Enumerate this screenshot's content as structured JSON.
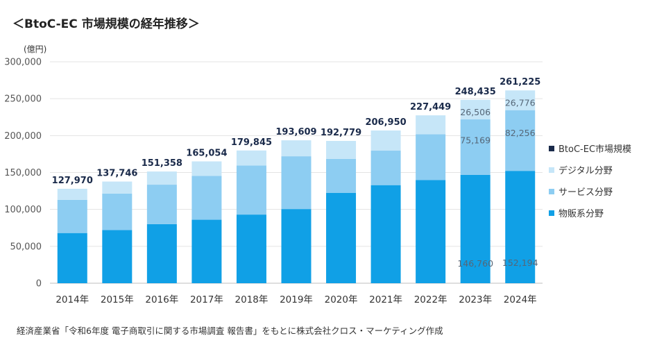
{
  "title": "＜BtoC-EC 市場規模の経年推移＞",
  "source": "経済産業省「令和6年度 電子商取引に関する市場調査 報告書」をもとに株式会社クロス・マーケティング作成",
  "chart_data": {
    "type": "bar",
    "stacked": true,
    "unit": "(億円)",
    "ylim": [
      0,
      300000
    ],
    "yticks": [
      "0",
      "50,000",
      "100,000",
      "150,000",
      "200,000",
      "250,000",
      "300,000"
    ],
    "categories": [
      "2014年",
      "2015年",
      "2016年",
      "2017年",
      "2018年",
      "2019年",
      "2020年",
      "2021年",
      "2022年",
      "2023年",
      "2024年"
    ],
    "series": [
      {
        "name": "物販系分野",
        "color": "#10a0e6",
        "values": [
          68000,
          72000,
          80000,
          86000,
          93000,
          100500,
          122500,
          132900,
          139900,
          146760,
          152194
        ]
      },
      {
        "name": "サービス分野",
        "color": "#8dcdf2",
        "values": [
          45000,
          49500,
          53500,
          59500,
          66500,
          71500,
          46000,
          46700,
          62000,
          75169,
          82256
        ]
      },
      {
        "name": "デジタル分野",
        "color": "#c6e6f8",
        "values": [
          14970,
          16246,
          17858,
          19554,
          20345,
          21609,
          24279,
          27350,
          25549,
          26506,
          26776
        ]
      }
    ],
    "totals": [
      "127,970",
      "137,746",
      "151,358",
      "165,054",
      "179,845",
      "193,609",
      "192,779",
      "206,950",
      "227,449",
      "248,435",
      "261,225"
    ],
    "segment_labels": [
      {
        "category": "2023年",
        "series": "物販系分野",
        "text": "146,760"
      },
      {
        "category": "2023年",
        "series": "サービス分野",
        "text": "75,169"
      },
      {
        "category": "2023年",
        "series": "デジタル分野",
        "text": "26,506"
      },
      {
        "category": "2024年",
        "series": "物販系分野",
        "text": "152,194"
      },
      {
        "category": "2024年",
        "series": "サービス分野",
        "text": "82,256"
      },
      {
        "category": "2024年",
        "series": "デジタル分野",
        "text": "26,776"
      }
    ],
    "legend": [
      {
        "label": "BtoC-EC市場規模",
        "color": "#1a2a4a"
      },
      {
        "label": "デジタル分野",
        "color": "#c6e6f8"
      },
      {
        "label": "サービス分野",
        "color": "#8dcdf2"
      },
      {
        "label": "物販系分野",
        "color": "#10a0e6"
      }
    ]
  }
}
